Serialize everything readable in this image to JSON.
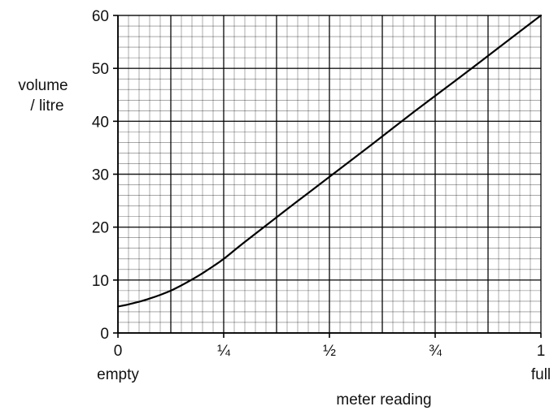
{
  "chart_data": {
    "type": "line",
    "title": "",
    "ylabel_lines": [
      "volume",
      "/ litre"
    ],
    "xlabel": "meter reading",
    "x_end_labels": {
      "start": "empty",
      "end": "full"
    },
    "xlim": [
      0,
      1
    ],
    "ylim": [
      0,
      60
    ],
    "x_ticks": [
      {
        "value": 0,
        "label": "0"
      },
      {
        "value": 0.25,
        "label": "¼"
      },
      {
        "value": 0.5,
        "label": "½"
      },
      {
        "value": 0.75,
        "label": "¾"
      },
      {
        "value": 1,
        "label": "1"
      }
    ],
    "y_ticks": [
      {
        "value": 0,
        "label": "0"
      },
      {
        "value": 10,
        "label": "10"
      },
      {
        "value": 20,
        "label": "20"
      },
      {
        "value": 30,
        "label": "30"
      },
      {
        "value": 40,
        "label": "40"
      },
      {
        "value": 50,
        "label": "50"
      },
      {
        "value": 60,
        "label": "60"
      }
    ],
    "grid": {
      "on": true,
      "x_minor_step": 0.025,
      "x_major_step": 0.125,
      "y_minor_step": 2,
      "y_major_step": 10
    },
    "series": [
      {
        "x": [
          0,
          0.025,
          0.05,
          0.075,
          0.1,
          0.125,
          0.15,
          0.175,
          0.2,
          0.225,
          0.25,
          0.3,
          0.4,
          0.5,
          0.6,
          0.7,
          0.8,
          0.9,
          1.0
        ],
        "y": [
          5.0,
          5.4,
          5.9,
          6.5,
          7.2,
          8.0,
          9.0,
          10.1,
          11.3,
          12.6,
          14.0,
          17.2,
          23.4,
          29.5,
          35.6,
          41.8,
          47.8,
          53.9,
          60.0
        ],
        "color": "#000000"
      }
    ],
    "colors": {
      "grid": "#000000",
      "axis": "#000000",
      "line": "#000000"
    }
  }
}
